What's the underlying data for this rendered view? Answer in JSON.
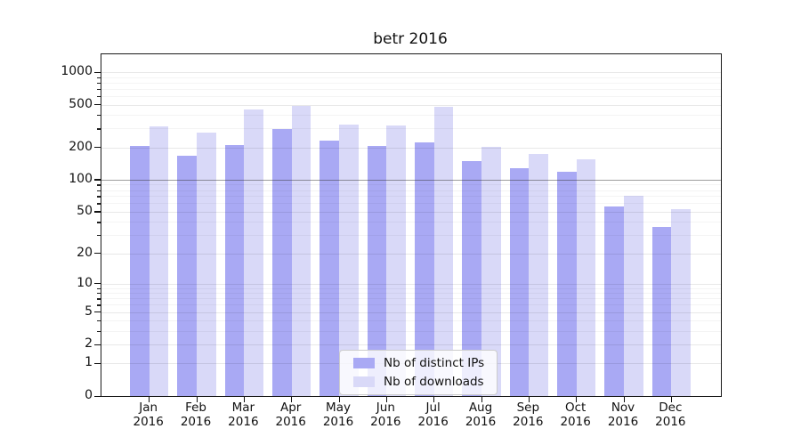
{
  "chart_data": {
    "type": "bar",
    "title": "betr 2016",
    "categories": [
      "Jan",
      "Feb",
      "Mar",
      "Apr",
      "May",
      "Jun",
      "Jul",
      "Aug",
      "Sep",
      "Oct",
      "Nov",
      "Dec"
    ],
    "year": "2016",
    "series": [
      {
        "name": "Nb of distinct IPs",
        "color": "#a9a9f4",
        "values": [
          207,
          168,
          210,
          296,
          232,
          207,
          224,
          148,
          129,
          118,
          56,
          36
        ]
      },
      {
        "name": "Nb of downloads",
        "color": "#d9d9f8",
        "values": [
          314,
          275,
          450,
          485,
          326,
          320,
          477,
          204,
          175,
          156,
          70,
          53
        ]
      }
    ],
    "yscale": "log1p",
    "ylim": [
      0,
      1465
    ],
    "yticks": [
      0,
      1,
      2,
      5,
      10,
      20,
      50,
      100,
      200,
      500,
      1000
    ],
    "minor_yticks": [
      3,
      4,
      6,
      7,
      8,
      9,
      30,
      40,
      60,
      70,
      80,
      90,
      300,
      400,
      600,
      700,
      800,
      900
    ],
    "highlight_line": 100,
    "grid": "major+minor",
    "legend_position": "lower-center-inside",
    "xlabel": "",
    "ylabel": ""
  }
}
